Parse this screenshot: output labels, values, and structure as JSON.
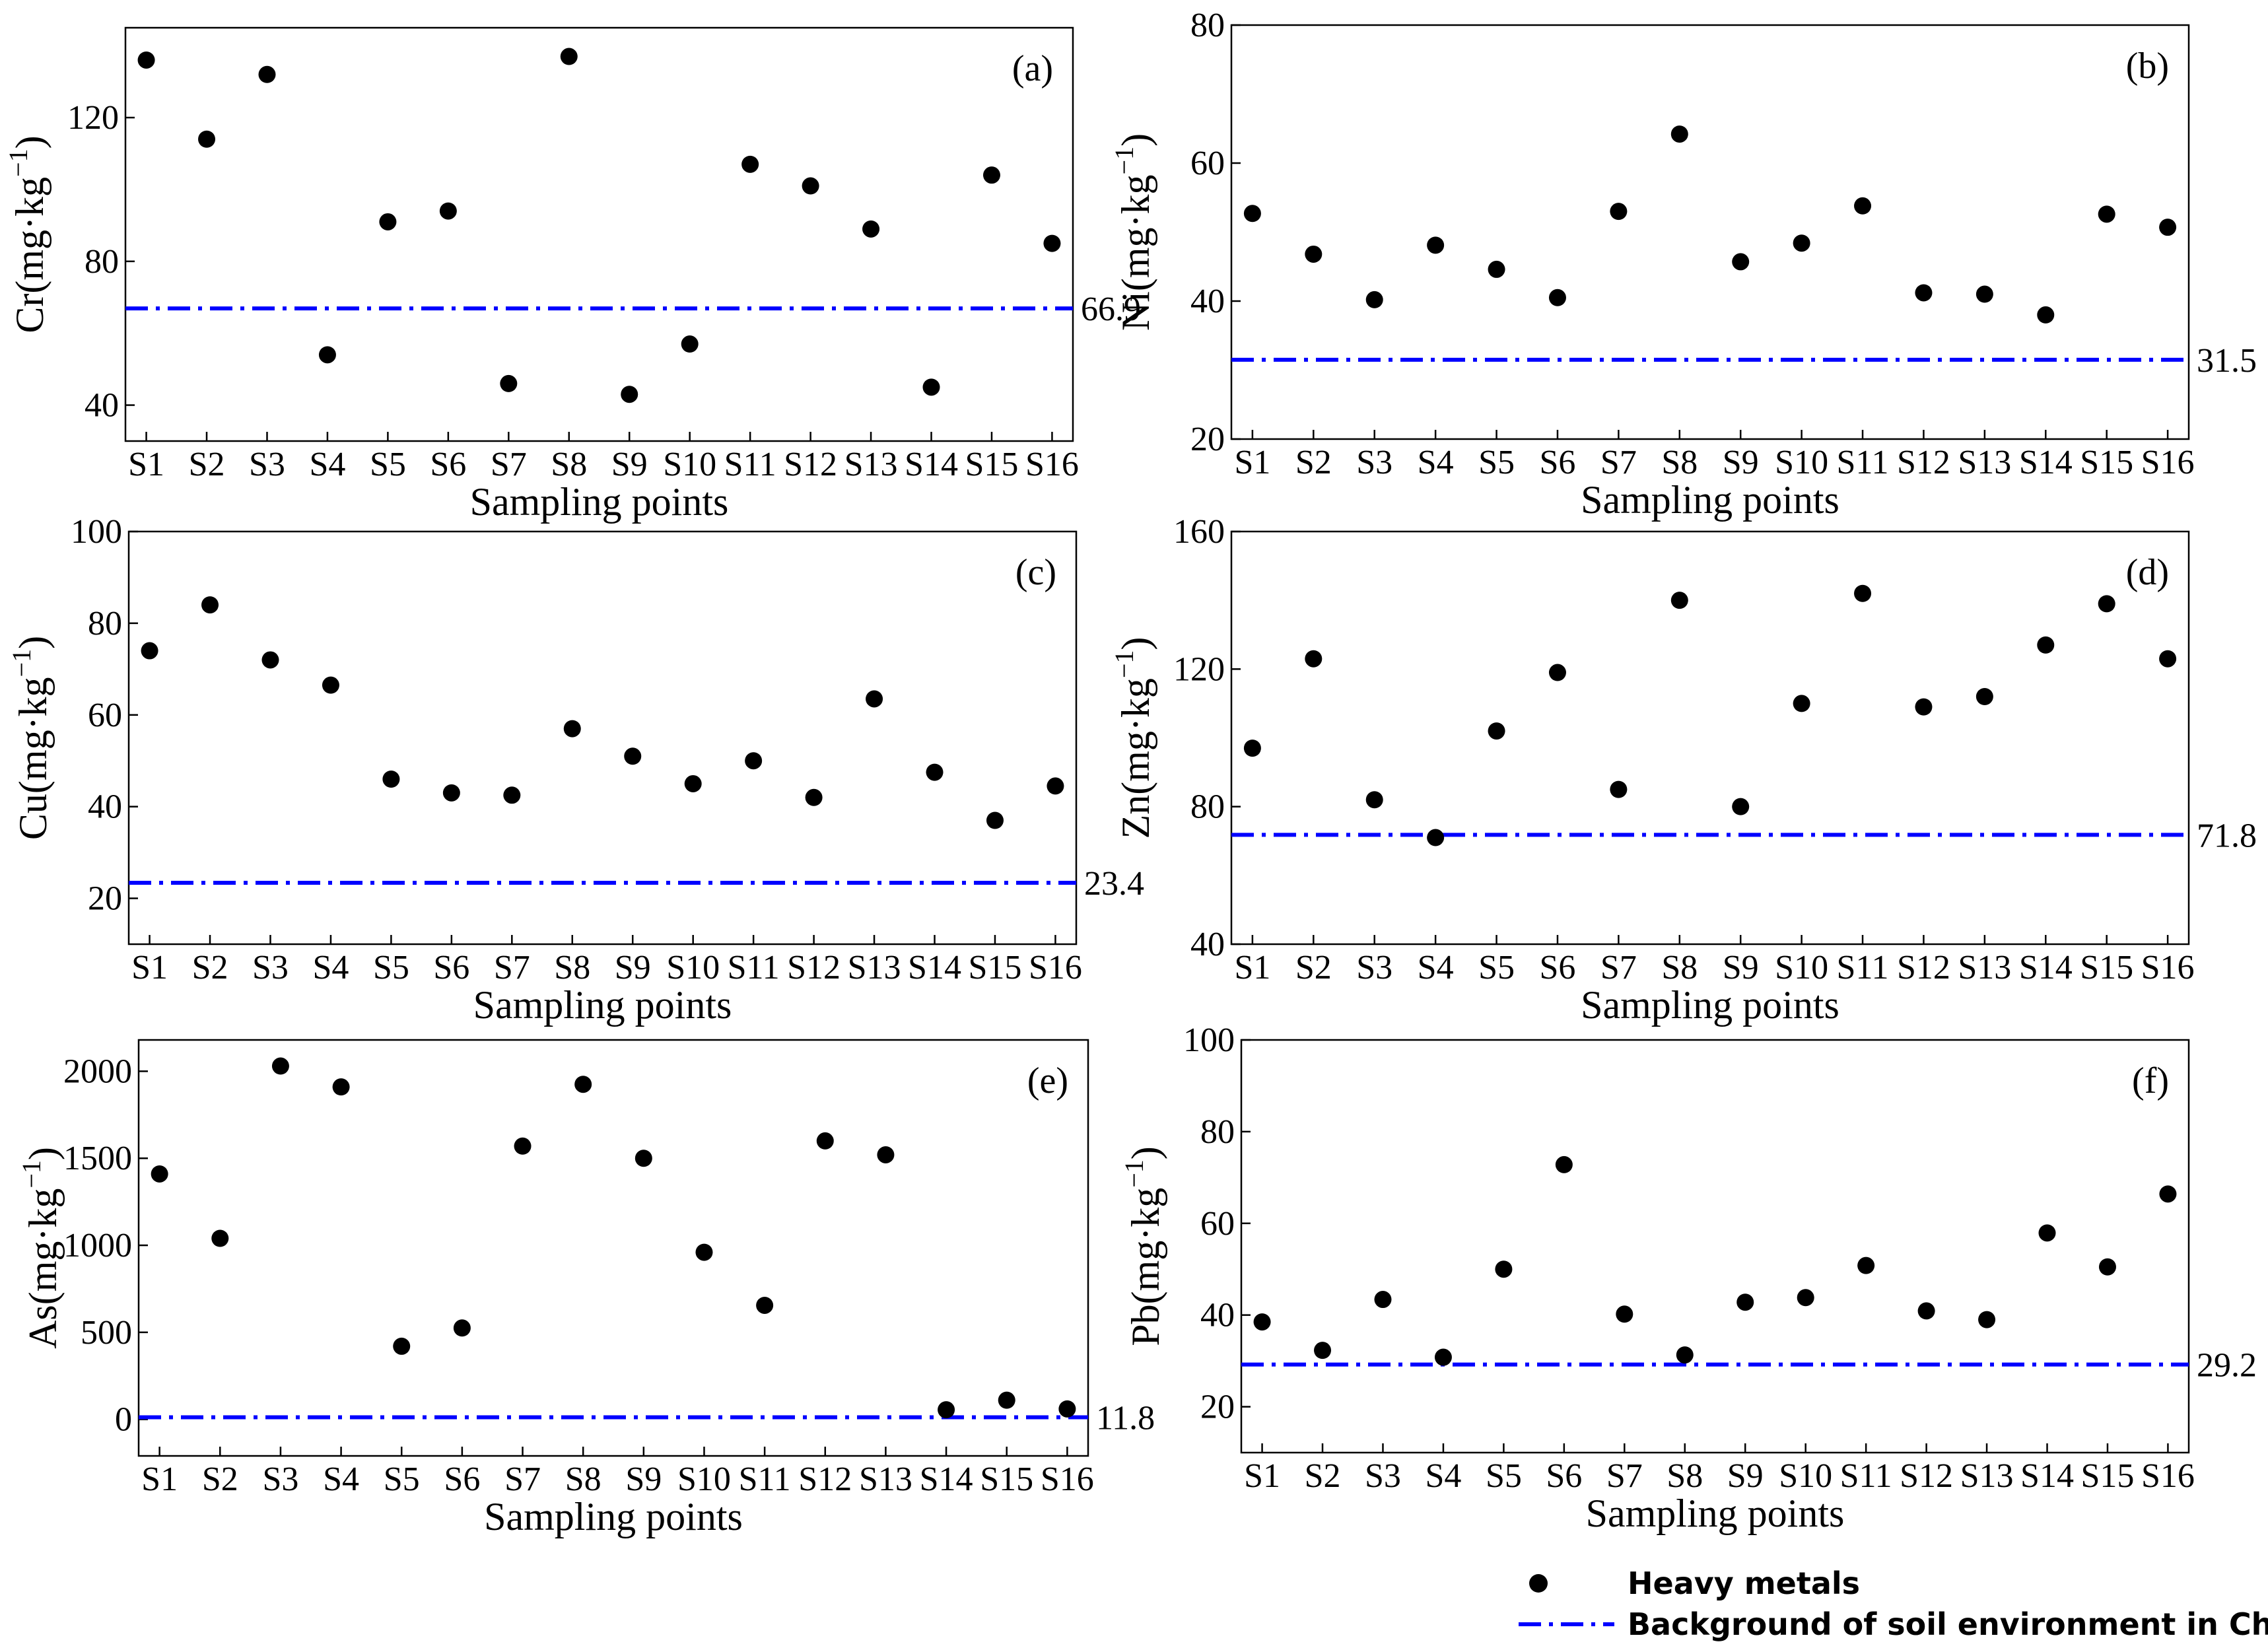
{
  "chart_data": [
    {
      "type": "scatter",
      "panel_label": "(a)",
      "metal": "Cr",
      "ylabel": "Cr(mg·kg",
      "ylabel_sup": "−1",
      "ylabel_close": ")",
      "xlabel": "Sampling points",
      "categories": [
        "S1",
        "S2",
        "S3",
        "S4",
        "S5",
        "S6",
        "S7",
        "S8",
        "S9",
        "S10",
        "S11",
        "S12",
        "S13",
        "S14",
        "S15",
        "S16"
      ],
      "values": [
        136,
        114,
        132,
        54,
        91,
        94,
        46,
        137,
        43,
        57,
        107,
        101,
        89,
        45,
        104,
        85
      ],
      "yticks": [
        40,
        80,
        120
      ],
      "ylim": [
        30,
        145
      ],
      "background": 66.9,
      "background_label": "66.9"
    },
    {
      "type": "scatter",
      "panel_label": "(b)",
      "metal": "Ni",
      "ylabel": "Ni(mg·kg",
      "ylabel_sup": "−1",
      "ylabel_close": ")",
      "xlabel": "Sampling points",
      "categories": [
        "S1",
        "S2",
        "S3",
        "S4",
        "S5",
        "S6",
        "S7",
        "S8",
        "S9",
        "S10",
        "S11",
        "S12",
        "S13",
        "S14",
        "S15",
        "S16"
      ],
      "values": [
        52.7,
        46.8,
        40.2,
        48.1,
        44.6,
        40.5,
        53.0,
        64.2,
        45.7,
        48.4,
        53.8,
        41.2,
        41.0,
        38.0,
        52.6,
        50.7
      ],
      "yticks": [
        20,
        40,
        60,
        80
      ],
      "ylim": [
        20,
        80
      ],
      "background": 31.5,
      "background_label": "31.5"
    },
    {
      "type": "scatter",
      "panel_label": "(c)",
      "metal": "Cu",
      "ylabel": "Cu(mg·kg",
      "ylabel_sup": "−1",
      "ylabel_close": ")",
      "xlabel": "Sampling points",
      "categories": [
        "S1",
        "S2",
        "S3",
        "S4",
        "S5",
        "S6",
        "S7",
        "S8",
        "S9",
        "S10",
        "S11",
        "S12",
        "S13",
        "S14",
        "S15",
        "S16"
      ],
      "values": [
        74,
        84,
        72,
        66.5,
        46,
        43,
        42.5,
        57,
        51,
        45,
        50,
        42,
        63.5,
        47.5,
        37,
        44.5
      ],
      "yticks": [
        20,
        40,
        60,
        80,
        100
      ],
      "ylim": [
        10,
        100
      ],
      "background": 23.4,
      "background_label": "23.4"
    },
    {
      "type": "scatter",
      "panel_label": "(d)",
      "metal": "Zn",
      "ylabel": "Zn(mg·kg",
      "ylabel_sup": "−1",
      "ylabel_close": ")",
      "xlabel": "Sampling points",
      "categories": [
        "S1",
        "S2",
        "S3",
        "S4",
        "S5",
        "S6",
        "S7",
        "S8",
        "S9",
        "S10",
        "S11",
        "S12",
        "S13",
        "S14",
        "S15",
        "S16"
      ],
      "values": [
        97,
        123,
        82,
        71,
        102,
        119,
        85,
        140,
        80,
        110,
        142,
        109,
        112,
        127,
        139,
        123
      ],
      "yticks": [
        40,
        80,
        120,
        160
      ],
      "ylim": [
        40,
        160
      ],
      "background": 71.8,
      "background_label": "71.8"
    },
    {
      "type": "scatter",
      "panel_label": "(e)",
      "metal": "As",
      "ylabel": "As(mg·kg",
      "ylabel_sup": "−1",
      "ylabel_close": ")",
      "xlabel": "Sampling points",
      "categories": [
        "S1",
        "S2",
        "S3",
        "S4",
        "S5",
        "S6",
        "S7",
        "S8",
        "S9",
        "S10",
        "S11",
        "S12",
        "S13",
        "S14",
        "S15",
        "S16"
      ],
      "values": [
        1410,
        1040,
        2030,
        1910,
        420,
        525,
        1570,
        1925,
        1500,
        960,
        655,
        1600,
        1520,
        55,
        110,
        60
      ],
      "yticks": [
        0,
        500,
        1000,
        1500,
        2000
      ],
      "ylim": [
        -210,
        2180
      ],
      "background": 11.8,
      "background_label": "11.8"
    },
    {
      "type": "scatter",
      "panel_label": "(f)",
      "metal": "Pb",
      "ylabel": "Pb(mg·kg",
      "ylabel_sup": "−1",
      "ylabel_close": ")",
      "xlabel": "Sampling points",
      "categories": [
        "S1",
        "S2",
        "S3",
        "S4",
        "S5",
        "S6",
        "S7",
        "S8",
        "S9",
        "S10",
        "S11",
        "S12",
        "S13",
        "S14",
        "S15",
        "S16"
      ],
      "values": [
        38.5,
        32.3,
        43.4,
        30.8,
        50.0,
        72.8,
        40.2,
        31.3,
        42.8,
        43.8,
        50.8,
        40.9,
        39.0,
        57.9,
        50.5,
        66.4
      ],
      "yticks": [
        20,
        40,
        60,
        80,
        100
      ],
      "ylim": [
        10,
        100
      ],
      "background": 29.2,
      "background_label": "29.2"
    }
  ],
  "legend": {
    "points_label": "Heavy metals",
    "line_label": "Background of soil environment in China",
    "point_color": "#000000",
    "line_color": "#0000ff"
  }
}
